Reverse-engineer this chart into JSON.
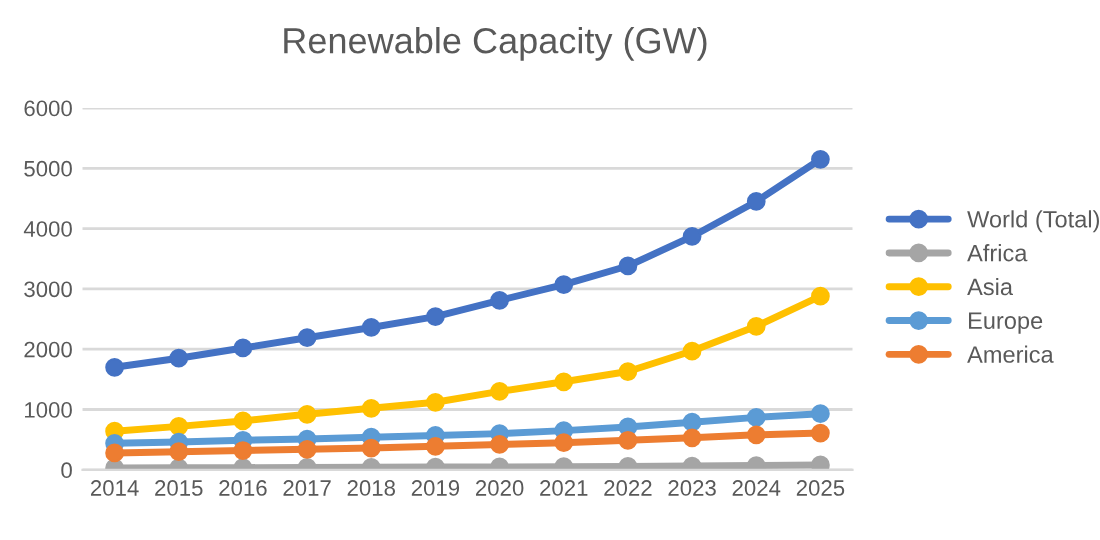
{
  "chart_data": {
    "type": "line",
    "title": "Renewable Capacity (GW)",
    "categories": [
      "2014",
      "2015",
      "2016",
      "2017",
      "2018",
      "2019",
      "2020",
      "2021",
      "2022",
      "2023",
      "2024",
      "2025"
    ],
    "series": [
      {
        "name": "World (Total)",
        "color": "#4472c4",
        "values": [
          1700,
          1850,
          2020,
          2190,
          2360,
          2540,
          2810,
          3070,
          3380,
          3870,
          4450,
          5150
        ]
      },
      {
        "name": "Africa",
        "color": "#a5a5a5",
        "values": [
          30,
          33,
          36,
          39,
          42,
          45,
          48,
          52,
          56,
          62,
          70,
          80
        ]
      },
      {
        "name": "Asia",
        "color": "#ffc000",
        "values": [
          640,
          720,
          810,
          920,
          1020,
          1120,
          1300,
          1460,
          1630,
          1970,
          2380,
          2880
        ]
      },
      {
        "name": "Europe",
        "color": "#5b9bd5",
        "values": [
          440,
          460,
          490,
          510,
          540,
          570,
          600,
          650,
          710,
          790,
          870,
          930
        ]
      },
      {
        "name": "America",
        "color": "#ed7d31",
        "values": [
          280,
          300,
          320,
          340,
          360,
          390,
          420,
          450,
          490,
          530,
          580,
          610
        ]
      }
    ],
    "ylim": [
      0,
      6000
    ],
    "yticks": [
      0,
      1000,
      2000,
      3000,
      4000,
      5000,
      6000
    ],
    "grid": "y",
    "legend": "right",
    "marker": "circle",
    "line_style": "solid"
  }
}
